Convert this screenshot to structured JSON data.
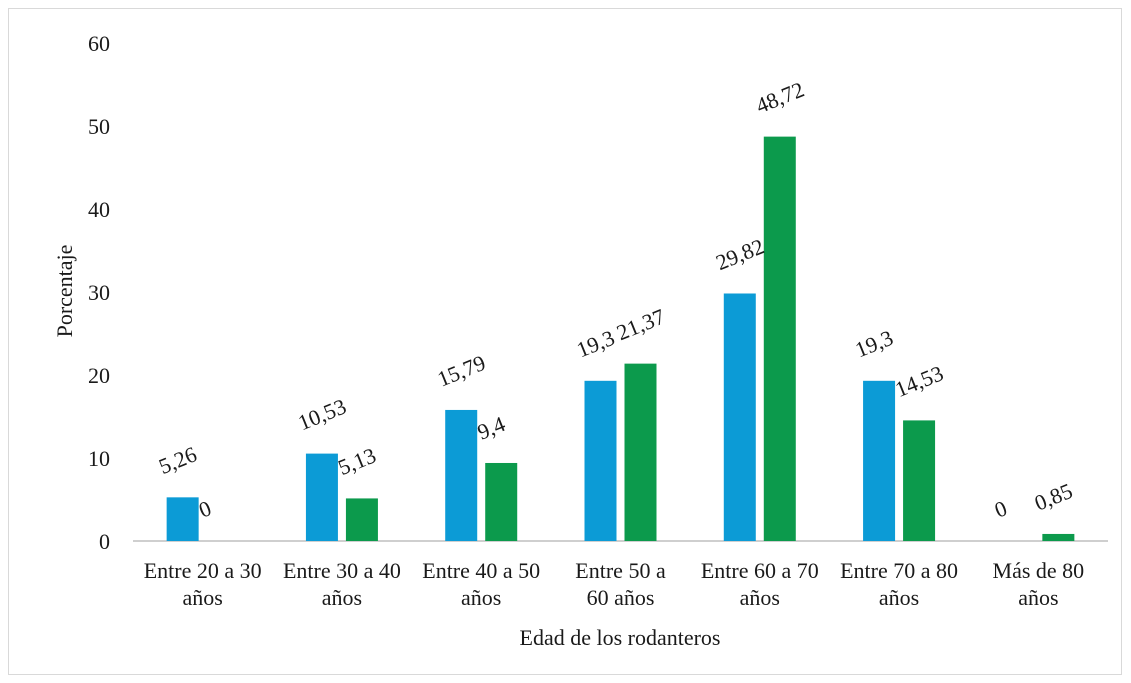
{
  "chart_data": {
    "type": "bar",
    "title": "",
    "xlabel": "Edad de los rodanteros",
    "ylabel": "Porcentaje",
    "ylim": [
      0,
      60
    ],
    "yticks": [
      "0",
      "10",
      "20",
      "30",
      "40",
      "50",
      "60"
    ],
    "grid": false,
    "categories": [
      [
        "Entre 20 a 30",
        "años"
      ],
      [
        "Entre 30 a 40",
        "años"
      ],
      [
        "Entre 40 a 50",
        "años"
      ],
      [
        "Entre  50 a",
        "60 años"
      ],
      [
        "Entre 60 a 70",
        "años"
      ],
      [
        "Entre 70 a 80",
        "años"
      ],
      [
        "Más de 80",
        "años"
      ]
    ],
    "series": [
      {
        "color": "#0c9bd6",
        "values": [
          5.26,
          10.53,
          15.79,
          19.3,
          29.82,
          19.3,
          0
        ],
        "labels": [
          "5,26",
          "10,53",
          "15,79",
          "19,3",
          "29,82",
          "19,3",
          "0"
        ]
      },
      {
        "color": "#0c9a4c",
        "values": [
          0,
          5.13,
          9.4,
          21.37,
          48.72,
          14.53,
          0.85
        ],
        "labels": [
          "0",
          "5,13",
          "9,4",
          "21,37",
          "48,72",
          "14,53",
          "0,85"
        ]
      }
    ]
  }
}
